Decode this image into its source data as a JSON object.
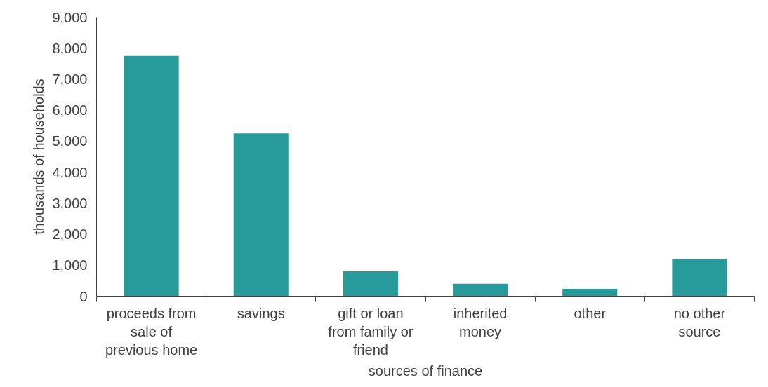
{
  "chart_data": {
    "type": "bar",
    "xlabel": "sources of finance",
    "ylabel": "thousands of households",
    "categories": [
      "proceeds from sale of previous home",
      "savings",
      "gift or loan from family or friend",
      "inherited money",
      "other",
      "no other source"
    ],
    "values": [
      7750,
      5250,
      800,
      400,
      240,
      1200
    ],
    "color": "#279b9b",
    "ylim": [
      0,
      9000
    ],
    "yticks": [
      {
        "value": 0,
        "label": "0"
      },
      {
        "value": 1000,
        "label": "1,000"
      },
      {
        "value": 2000,
        "label": "2,000"
      },
      {
        "value": 3000,
        "label": "3,000"
      },
      {
        "value": 4000,
        "label": "4,000"
      },
      {
        "value": 5000,
        "label": "5,000"
      },
      {
        "value": 6000,
        "label": "6,000"
      },
      {
        "value": 7000,
        "label": "7,000"
      },
      {
        "value": 8000,
        "label": "8,000"
      },
      {
        "value": 9000,
        "label": "9,000"
      }
    ],
    "grid": false
  }
}
